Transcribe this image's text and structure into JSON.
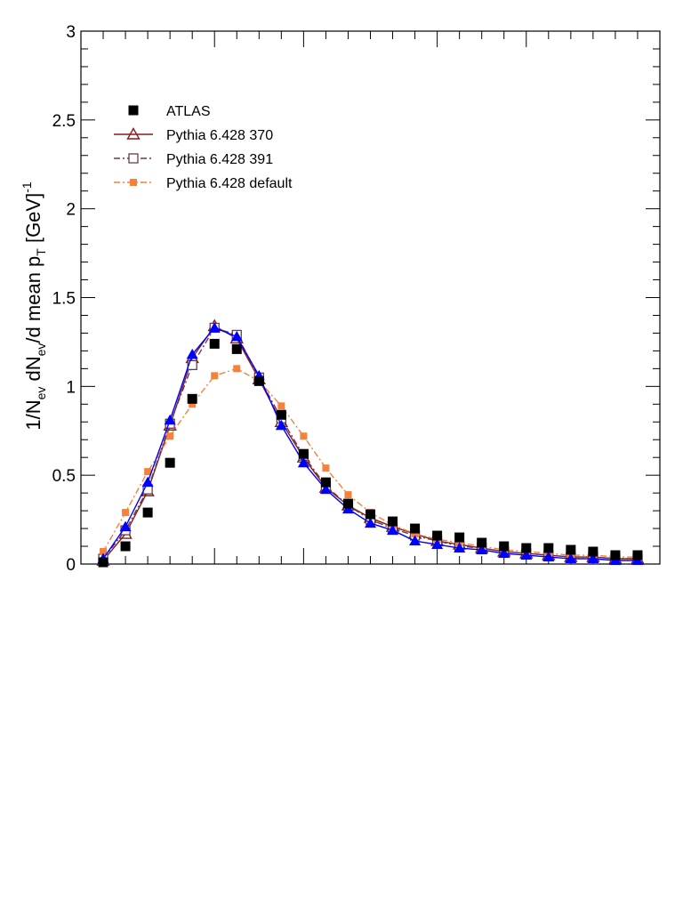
{
  "chart_data": {
    "type": "scatter",
    "title": "",
    "xlabel": "",
    "ylabel": {
      "parts": [
        {
          "text": "1/N",
          "role": "normal"
        },
        {
          "text": "ev",
          "role": "sub"
        },
        {
          "text": " dN",
          "role": "normal"
        },
        {
          "text": "ev",
          "role": "sub"
        },
        {
          "text": "/d mean p",
          "role": "normal"
        },
        {
          "text": "T",
          "role": "sub"
        },
        {
          "text": " [GeV]",
          "role": "normal"
        },
        {
          "text": "-1",
          "role": "sup"
        }
      ]
    },
    "xlim": [
      0,
      26
    ],
    "ylim": [
      0,
      3
    ],
    "y_ticks": [
      "0",
      "0.5",
      "1",
      "1.5",
      "2",
      "2.5",
      "3"
    ],
    "y_tick_values": [
      0,
      0.5,
      1,
      1.5,
      2,
      2.5,
      3
    ],
    "x_major_ticks": [
      6,
      10,
      16,
      20
    ],
    "legend_position": "top-left",
    "series": [
      {
        "name": "ATLAS",
        "style": "markers",
        "marker": "square-filled",
        "color": "#000000",
        "x": [
          1,
          2,
          3,
          4,
          5,
          6,
          7,
          8,
          9,
          10,
          11,
          12,
          13,
          14,
          15,
          16,
          17,
          18,
          19,
          20,
          21,
          22,
          23,
          24,
          25
        ],
        "y": [
          0.01,
          0.1,
          0.29,
          0.57,
          0.93,
          1.24,
          1.21,
          1.03,
          0.84,
          0.62,
          0.46,
          0.34,
          0.28,
          0.24,
          0.2,
          0.16,
          0.15,
          0.12,
          0.1,
          0.09,
          0.09,
          0.08,
          0.07,
          0.05,
          0.05
        ]
      },
      {
        "name": "Pythia 6.428 370",
        "style": "line-markers",
        "marker": "triangle-open",
        "line": "solid",
        "color": "#8b1a1a",
        "x": [
          1,
          2,
          3,
          4,
          5,
          6,
          7,
          8,
          9,
          10,
          11,
          12,
          13,
          14,
          15,
          16,
          17,
          18,
          19,
          20,
          21,
          22,
          23,
          24,
          25
        ],
        "y": [
          0.02,
          0.17,
          0.41,
          0.78,
          1.16,
          1.34,
          1.27,
          1.04,
          0.8,
          0.6,
          0.43,
          0.33,
          0.26,
          0.21,
          0.17,
          0.13,
          0.11,
          0.09,
          0.07,
          0.06,
          0.05,
          0.04,
          0.04,
          0.03,
          0.03
        ]
      },
      {
        "name": "Pythia 6.428 391",
        "style": "line-markers",
        "marker": "square-open",
        "line": "dashdot",
        "color": "#6b3a48",
        "x": [
          1,
          2,
          3,
          4,
          5,
          6,
          7,
          8,
          9,
          10,
          11,
          12,
          13,
          14,
          15,
          16,
          17,
          18,
          19,
          20,
          21,
          22,
          23,
          24,
          25
        ],
        "y": [
          0.03,
          0.19,
          0.42,
          0.79,
          1.12,
          1.33,
          1.29,
          1.05,
          0.82,
          0.61,
          0.44,
          0.33,
          0.25,
          0.2,
          0.16,
          0.13,
          0.1,
          0.09,
          0.07,
          0.06,
          0.05,
          0.04,
          0.04,
          0.03,
          0.03
        ]
      },
      {
        "name": "Pythia 6.428 default",
        "style": "line-markers",
        "marker": "square-filled-small",
        "line": "dashdot",
        "color": "#f5813a",
        "x": [
          1,
          2,
          3,
          4,
          5,
          6,
          7,
          8,
          9,
          10,
          11,
          12,
          13,
          14,
          15,
          16,
          17,
          18,
          19,
          20,
          21,
          22,
          23,
          24,
          25
        ],
        "y": [
          0.07,
          0.29,
          0.52,
          0.72,
          0.9,
          1.06,
          1.1,
          1.03,
          0.89,
          0.72,
          0.54,
          0.39,
          0.29,
          0.22,
          0.17,
          0.14,
          0.12,
          0.1,
          0.08,
          0.07,
          0.06,
          0.05,
          0.05,
          0.04,
          0.04
        ]
      },
      {
        "name": "",
        "style": "line-markers",
        "marker": "triangle-filled",
        "line": "solid",
        "color": "#0000ff",
        "x": [
          1,
          2,
          3,
          4,
          5,
          6,
          7,
          8,
          9,
          10,
          11,
          12,
          13,
          14,
          15,
          16,
          17,
          18,
          19,
          20,
          21,
          22,
          23,
          24,
          25
        ],
        "y": [
          0.03,
          0.21,
          0.46,
          0.81,
          1.18,
          1.33,
          1.28,
          1.06,
          0.78,
          0.57,
          0.42,
          0.31,
          0.23,
          0.19,
          0.13,
          0.11,
          0.09,
          0.08,
          0.06,
          0.05,
          0.04,
          0.03,
          0.03,
          0.02,
          0.02
        ]
      }
    ]
  }
}
